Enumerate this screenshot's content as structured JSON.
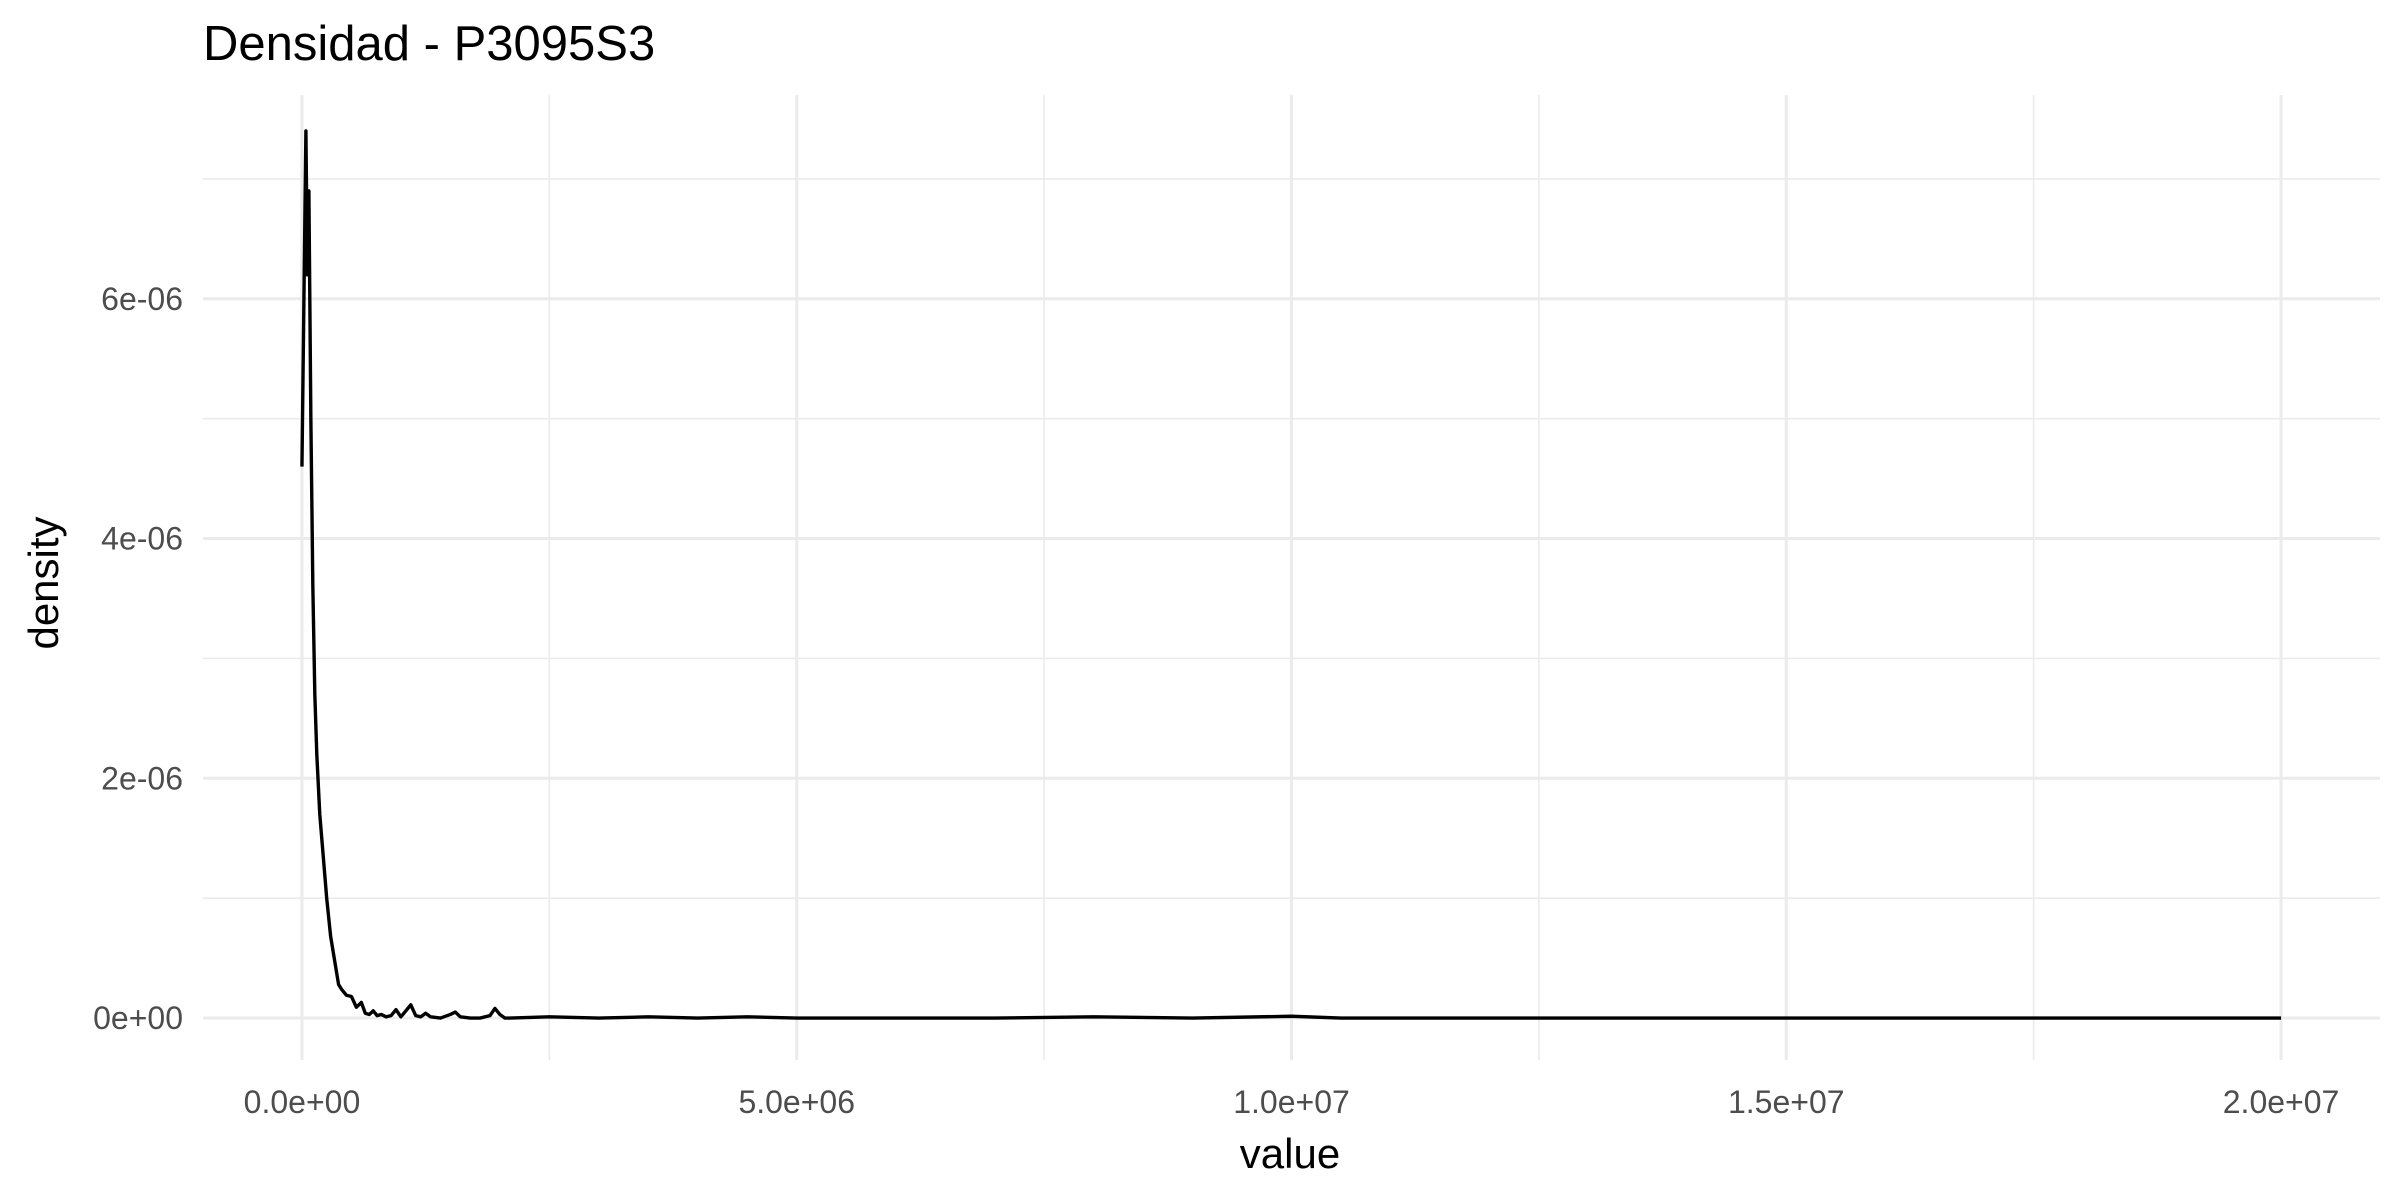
{
  "chart_data": {
    "type": "line",
    "title": "Densidad - P3095S3",
    "xlabel": "value",
    "ylabel": "density",
    "xlim": [
      -1000000,
      21000000
    ],
    "ylim": [
      -3.5e-07,
      7.7e-06
    ],
    "grid": true,
    "x_ticks": [
      0,
      5000000,
      10000000,
      15000000,
      20000000
    ],
    "x_tick_labels": [
      "0.0e+00",
      "5.0e+06",
      "1.0e+07",
      "1.5e+07",
      "2.0e+07"
    ],
    "y_ticks": [
      0,
      2e-06,
      4e-06,
      6e-06
    ],
    "y_tick_labels": [
      "0e+00",
      "2e-06",
      "4e-06",
      "6e-06"
    ],
    "series": [
      {
        "color": "#000000",
        "x": [
          0,
          20000,
          40000,
          55000,
          70000,
          90000,
          110000,
          130000,
          150000,
          180000,
          210000,
          250000,
          290000,
          330000,
          370000,
          400000,
          450000,
          500000,
          550000,
          600000,
          640000,
          680000,
          720000,
          760000,
          800000,
          850000,
          900000,
          950000,
          1000000,
          1050000,
          1100000,
          1150000,
          1200000,
          1250000,
          1300000,
          1400000,
          1500000,
          1550000,
          1600000,
          1700000,
          1800000,
          1900000,
          1950000,
          2000000,
          2050000,
          2100000,
          2500000,
          3000000,
          3500000,
          4000000,
          4500000,
          5000000,
          6000000,
          7000000,
          8000000,
          9000000,
          10000000,
          10500000,
          12000000,
          14000000,
          16000000,
          18000000,
          20000000
        ],
        "y": [
          4.6e-06,
          6e-06,
          7.4e-06,
          6.2e-06,
          6.9e-06,
          5e-06,
          3.6e-06,
          2.7e-06,
          2.2e-06,
          1.7e-06,
          1.4e-06,
          1e-06,
          6.8e-07,
          4.8e-07,
          2.8e-07,
          2.4e-07,
          1.9e-07,
          1.8e-07,
          9e-08,
          1.3e-07,
          4e-08,
          3e-08,
          6e-08,
          2e-08,
          3e-08,
          1e-08,
          2e-08,
          7e-08,
          1e-08,
          6e-08,
          1.1e-07,
          2e-08,
          1e-08,
          4e-08,
          1e-08,
          0,
          3e-08,
          5e-08,
          1e-08,
          0,
          0,
          2e-08,
          8e-08,
          3e-08,
          0,
          0,
          1e-08,
          0,
          1e-08,
          0,
          1e-08,
          0,
          0,
          0,
          1e-08,
          0,
          1.5e-08,
          0,
          0,
          0,
          0,
          0,
          0
        ]
      }
    ]
  }
}
